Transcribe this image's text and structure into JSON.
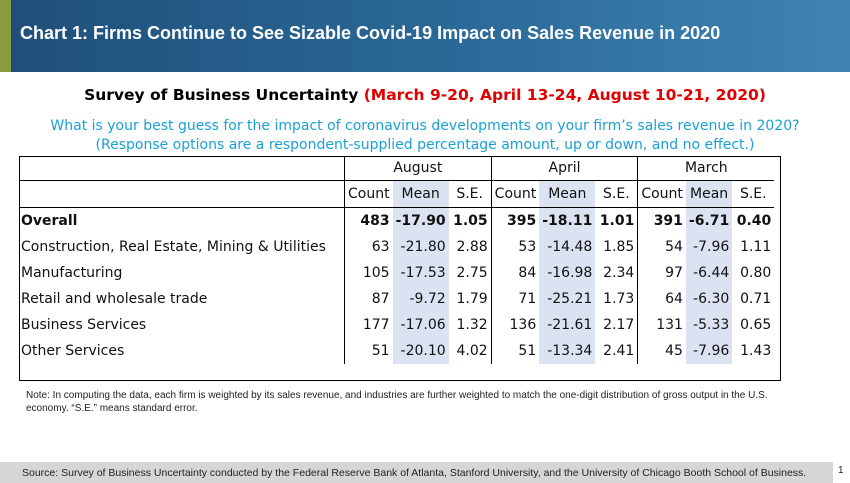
{
  "header": {
    "title": "Chart 1: Firms Continue to See Sizable Covid-19 Impact on Sales Revenue in 2020"
  },
  "subtitle": {
    "main": "Survey of Business Uncertainty",
    "dates": "(March 9-20, April 13-24, August 10-21, 2020)"
  },
  "question": {
    "line1": "What is your best guess for the impact of coronavirus developments on your firm’s sales revenue in 2020?",
    "line2": "(Response options are a respondent-supplied percentage amount, up or down, and no effect.)"
  },
  "colors": {
    "header_bg": "#2b6a98",
    "header_accent": "#8a9a3e",
    "dates_red": "#e00000",
    "question_blue": "#1aa0d6",
    "mean_shade": "#dbe3f3",
    "footer_bg": "#d6d6d6"
  },
  "chart_data": {
    "type": "table",
    "groups": [
      "August",
      "April",
      "March"
    ],
    "subcolumns": [
      "Count",
      "Mean",
      "S.E."
    ],
    "rows": [
      {
        "label": "Overall",
        "values": [
          "483",
          "-17.90",
          "1.05",
          "395",
          "-18.11",
          "1.01",
          "391",
          "-6.71",
          "0.40"
        ]
      },
      {
        "label": "Construction, Real Estate, Mining & Utilities",
        "values": [
          "63",
          "-21.80",
          "2.88",
          "53",
          "-14.48",
          "1.85",
          "54",
          "-7.96",
          "1.11"
        ]
      },
      {
        "label": "Manufacturing",
        "values": [
          "105",
          "-17.53",
          "2.75",
          "84",
          "-16.98",
          "2.34",
          "97",
          "-6.44",
          "0.80"
        ]
      },
      {
        "label": "Retail and wholesale trade",
        "values": [
          "87",
          "-9.72",
          "1.79",
          "71",
          "-25.21",
          "1.73",
          "64",
          "-6.30",
          "0.71"
        ]
      },
      {
        "label": "Business Services",
        "values": [
          "177",
          "-17.06",
          "1.32",
          "136",
          "-21.61",
          "2.17",
          "131",
          "-5.33",
          "0.65"
        ]
      },
      {
        "label": "Other Services",
        "values": [
          "51",
          "-20.10",
          "4.02",
          "51",
          "-13.34",
          "2.41",
          "45",
          "-7.96",
          "1.43"
        ]
      }
    ]
  },
  "note": "Note: In computing the data, each firm is weighted by its sales revenue, and industries are further weighted to match the one-digit distribution of gross output in the U.S. economy. “S.E.” means standard error.",
  "footer": {
    "source": "Source: Survey of Business Uncertainty conducted by the Federal Reserve Bank of Atlanta, Stanford University, and the University of Chicago Booth School of Business."
  },
  "page_number": "1"
}
